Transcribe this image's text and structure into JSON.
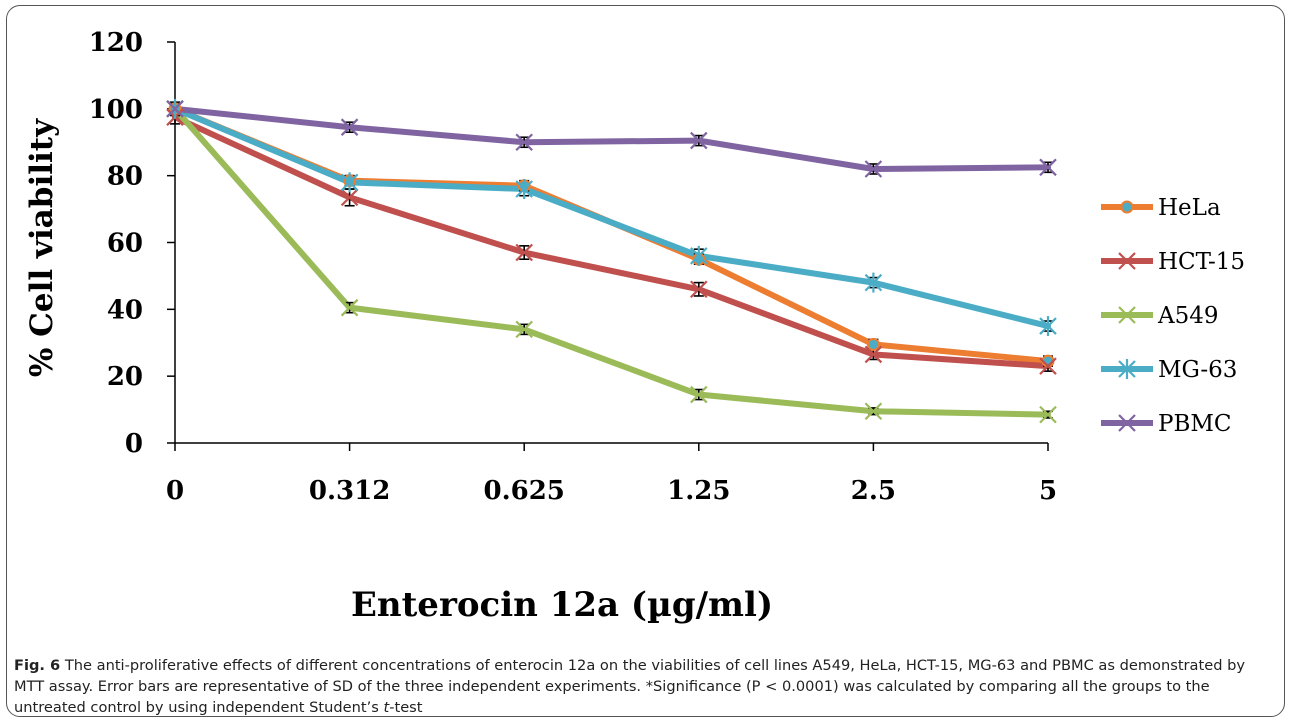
{
  "caption": {
    "label": "Fig. 6",
    "text_before_italic": " The anti-proliferative effects of different concentrations of enterocin 12a on the viabilities of cell lines A549, HeLa, HCT-15, MG-63 and PBMC as demonstrated by MTT assay. Error bars are representative of SD of the three independent experiments. *Significance (P < 0.0001) was calculated by comparing all the groups to the untreated control by using independent Student’s ",
    "italic": "t",
    "text_after_italic": "-test"
  },
  "chart_data": {
    "type": "line",
    "categories": [
      "0",
      "0.312",
      "0.625",
      "1.25",
      "2.5",
      "5"
    ],
    "xlabel": "Enterocin 12a (µg/ml)",
    "ylabel": "% Cell viability",
    "ylim": [
      0,
      120
    ],
    "yticks": [
      "0",
      "20",
      "40",
      "60",
      "80",
      "100",
      "120"
    ],
    "grid": false,
    "legend_position": "right",
    "series": [
      {
        "name": "HeLa",
        "values": [
          100,
          78.5,
          77,
          55,
          29.5,
          24.5
        ],
        "color": "#ed7d31",
        "marker": "circle",
        "err": [
          1.5,
          1.5,
          1.5,
          1.5,
          1.5,
          1.5
        ]
      },
      {
        "name": "HCT-15",
        "values": [
          97.5,
          73.5,
          57,
          46,
          26.5,
          23
        ],
        "color": "#c0504d",
        "marker": "x",
        "err": [
          2,
          2.5,
          2,
          2,
          1.5,
          1.5
        ]
      },
      {
        "name": "A549",
        "values": [
          100,
          40.5,
          34,
          14.5,
          9.5,
          8.5
        ],
        "color": "#9bbb59",
        "marker": "x",
        "err": [
          1.5,
          1.5,
          1.5,
          1.5,
          1,
          1
        ]
      },
      {
        "name": "MG-63",
        "values": [
          100,
          78,
          76,
          56,
          48,
          35
        ],
        "color": "#4bacc6",
        "marker": "asterisk",
        "err": [
          2,
          2,
          2,
          2,
          1.5,
          1.5
        ]
      },
      {
        "name": "PBMC",
        "values": [
          100,
          94.5,
          90,
          90.5,
          82,
          82.5
        ],
        "color": "#8064a2",
        "marker": "x",
        "err": [
          1.5,
          1.5,
          1.5,
          1.5,
          1.5,
          1.5
        ]
      }
    ]
  }
}
